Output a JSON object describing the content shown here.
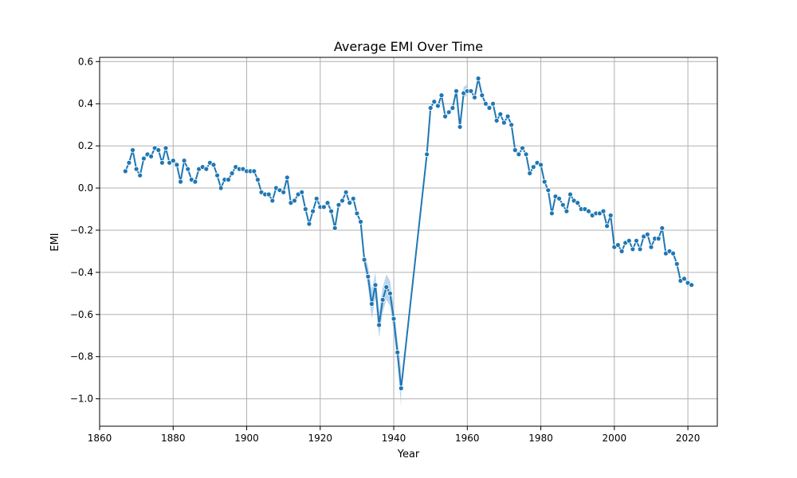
{
  "chart_data": {
    "type": "line",
    "title": "Average EMI Over Time",
    "xlabel": "Year",
    "ylabel": "EMI",
    "xlim": [
      1860,
      2028
    ],
    "ylim": [
      -1.13,
      0.62
    ],
    "xticks": [
      1860,
      1880,
      1900,
      1920,
      1940,
      1960,
      1980,
      2000,
      2020
    ],
    "yticks": [
      0.6,
      0.4,
      0.2,
      0.0,
      -0.2,
      -0.4,
      -0.6,
      -0.8,
      -1.0
    ],
    "ytick_labels": [
      "0.6",
      "0.4",
      "0.2",
      "0.0",
      "−0.2",
      "−0.4",
      "−0.6",
      "−0.8",
      "−1.0"
    ],
    "grid": true,
    "series": [
      {
        "color": "#1f77b4",
        "band_color": "#a6c8e6",
        "x": [
          1867,
          1868,
          1869,
          1870,
          1871,
          1872,
          1873,
          1874,
          1875,
          1876,
          1877,
          1878,
          1879,
          1880,
          1881,
          1882,
          1883,
          1884,
          1885,
          1886,
          1887,
          1888,
          1889,
          1890,
          1891,
          1892,
          1893,
          1894,
          1895,
          1896,
          1897,
          1898,
          1899,
          1900,
          1901,
          1902,
          1903,
          1904,
          1905,
          1906,
          1907,
          1908,
          1909,
          1910,
          1911,
          1912,
          1913,
          1914,
          1915,
          1916,
          1917,
          1918,
          1919,
          1920,
          1921,
          1922,
          1923,
          1924,
          1925,
          1926,
          1927,
          1928,
          1929,
          1930,
          1931,
          1932,
          1933,
          1934,
          1935,
          1936,
          1937,
          1938,
          1939,
          1940,
          1941,
          1942,
          1949,
          1950,
          1951,
          1952,
          1953,
          1954,
          1955,
          1956,
          1957,
          1958,
          1959,
          1960,
          1961,
          1962,
          1963,
          1964,
          1965,
          1966,
          1967,
          1968,
          1969,
          1970,
          1971,
          1972,
          1973,
          1974,
          1975,
          1976,
          1977,
          1978,
          1979,
          1980,
          1981,
          1982,
          1983,
          1984,
          1985,
          1986,
          1987,
          1988,
          1989,
          1990,
          1991,
          1992,
          1993,
          1994,
          1995,
          1996,
          1997,
          1998,
          1999,
          2000,
          2001,
          2002,
          2003,
          2004,
          2005,
          2006,
          2007,
          2008,
          2009,
          2010,
          2011,
          2012,
          2013,
          2014,
          2015,
          2016,
          2017,
          2018,
          2019,
          2020,
          2021
        ],
        "y": [
          0.08,
          0.12,
          0.18,
          0.09,
          0.06,
          0.14,
          0.16,
          0.15,
          0.19,
          0.18,
          0.12,
          0.19,
          0.12,
          0.13,
          0.11,
          0.03,
          0.13,
          0.09,
          0.04,
          0.03,
          0.09,
          0.1,
          0.09,
          0.12,
          0.11,
          0.06,
          0.0,
          0.04,
          0.04,
          0.07,
          0.1,
          0.09,
          0.09,
          0.08,
          0.08,
          0.08,
          0.04,
          -0.02,
          -0.03,
          -0.03,
          -0.06,
          0.0,
          -0.01,
          -0.02,
          0.05,
          -0.07,
          -0.06,
          -0.03,
          -0.02,
          -0.1,
          -0.17,
          -0.11,
          -0.05,
          -0.09,
          -0.09,
          -0.07,
          -0.11,
          -0.19,
          -0.08,
          -0.06,
          -0.02,
          -0.07,
          -0.05,
          -0.12,
          -0.16,
          -0.34,
          -0.42,
          -0.55,
          -0.46,
          -0.65,
          -0.53,
          -0.47,
          -0.5,
          -0.62,
          -0.78,
          -0.95,
          0.16,
          0.38,
          0.41,
          0.39,
          0.44,
          0.34,
          0.36,
          0.38,
          0.46,
          0.29,
          0.45,
          0.46,
          0.46,
          0.43,
          0.52,
          0.44,
          0.4,
          0.38,
          0.4,
          0.32,
          0.35,
          0.31,
          0.34,
          0.3,
          0.18,
          0.16,
          0.19,
          0.16,
          0.07,
          0.1,
          0.12,
          0.11,
          0.03,
          -0.01,
          -0.12,
          -0.04,
          -0.05,
          -0.08,
          -0.11,
          -0.03,
          -0.06,
          -0.07,
          -0.1,
          -0.1,
          -0.11,
          -0.13,
          -0.12,
          -0.12,
          -0.11,
          -0.18,
          -0.13,
          -0.28,
          -0.27,
          -0.3,
          -0.26,
          -0.25,
          -0.29,
          -0.25,
          -0.29,
          -0.23,
          -0.22,
          -0.28,
          -0.24,
          -0.24,
          -0.19,
          -0.31,
          -0.3,
          -0.31,
          -0.36,
          -0.44,
          -0.43,
          -0.45,
          -0.46
        ],
        "band": [
          {
            "x": 1932,
            "lo": -0.37,
            "hi": -0.31
          },
          {
            "x": 1933,
            "lo": -0.47,
            "hi": -0.37
          },
          {
            "x": 1934,
            "lo": -0.62,
            "hi": -0.48
          },
          {
            "x": 1935,
            "lo": -0.52,
            "hi": -0.4
          },
          {
            "x": 1936,
            "lo": -0.71,
            "hi": -0.59
          },
          {
            "x": 1937,
            "lo": -0.59,
            "hi": -0.47
          },
          {
            "x": 1938,
            "lo": -0.53,
            "hi": -0.41
          },
          {
            "x": 1939,
            "lo": -0.56,
            "hi": -0.44
          },
          {
            "x": 1940,
            "lo": -0.68,
            "hi": -0.56
          },
          {
            "x": 1941,
            "lo": -0.83,
            "hi": -0.72
          },
          {
            "x": 1942,
            "lo": -1.04,
            "hi": -0.86
          },
          {
            "x": 1949,
            "lo": 0.13,
            "hi": 0.19
          },
          {
            "x": 1950,
            "lo": 0.36,
            "hi": 0.4
          },
          {
            "x": 1958,
            "lo": 0.27,
            "hi": 0.31
          },
          {
            "x": 1959,
            "lo": 0.43,
            "hi": 0.48
          },
          {
            "x": 1960,
            "lo": 0.44,
            "hi": 0.49
          }
        ]
      }
    ]
  }
}
